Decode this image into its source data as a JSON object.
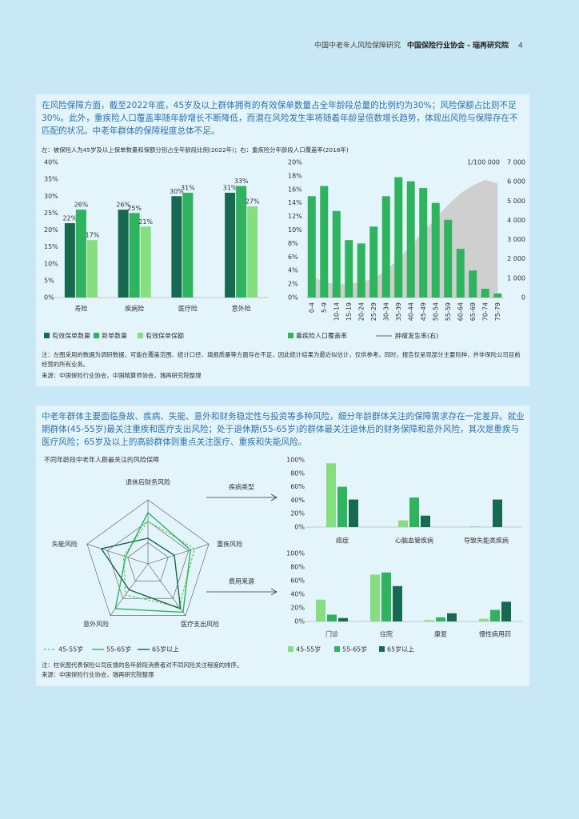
{
  "header": {
    "subtitle": "中国中老年人风险保障研究",
    "org": "中国保险行业协会 - 瑞再研究院",
    "page": "4"
  },
  "section1": {
    "text": "在风险保障方面，截至2022年底，45岁及以上群体拥有的有效保单数量占全年龄段总量的比例约为30%；风险保额占比则不足30%。此外，重疾险人口覆盖率随年龄增长不断降低，而潜在风险发生率将随着年龄呈倍数增长趋势，体现出风险与保障存在不匹配的状况。中老年群体的保障程度总体不足。",
    "caption": "左：被保险人为45岁及以上保单数量和保额分别占全年龄段比例(2022年)；右：重疾险分年龄段人口覆盖率(2018年)",
    "left_chart": {
      "type": "bar",
      "categories": [
        "寿险",
        "疾病险",
        "医疗险",
        "意外险"
      ],
      "series": [
        {
          "name": "有效保单数量",
          "color": "#17694f",
          "values": [
            22,
            26,
            30,
            31
          ],
          "value_labels": [
            "22%",
            "26%",
            "30%",
            "31%"
          ]
        },
        {
          "name": "新单数量",
          "color": "#2fb35f",
          "values": [
            26,
            25,
            31,
            33
          ],
          "value_labels": [
            "26%",
            "25%",
            "31%",
            "33%"
          ]
        },
        {
          "name": "有效保单保额",
          "color": "#86df7f",
          "values": [
            17,
            21,
            null,
            27
          ],
          "value_labels": [
            "17%",
            "21%",
            null,
            "27%"
          ]
        }
      ],
      "ylim": [
        0,
        40
      ],
      "yticks": [
        {
          "value": 0,
          "label": "0%"
        },
        {
          "value": 5,
          "label": "5%"
        },
        {
          "value": 10,
          "label": "10%"
        },
        {
          "value": 15,
          "label": "15%"
        },
        {
          "value": 20,
          "label": "20%"
        },
        {
          "value": 25,
          "label": "25%"
        },
        {
          "value": 30,
          "label": "30%"
        },
        {
          "value": 35,
          "label": "35%"
        },
        {
          "value": 40,
          "label": "40%"
        }
      ]
    },
    "right_chart": {
      "type": "bar",
      "categories": [
        "0-4",
        "5-9",
        "10-14",
        "15-19",
        "20-24",
        "25-29",
        "30-34",
        "35-39",
        "40-44",
        "45-49",
        "50-54",
        "55-59",
        "60-64",
        "65-69",
        "70-74",
        "75-79"
      ],
      "series": [
        {
          "name": "重疾险人口覆盖率",
          "color": "#2fb35f",
          "values": [
            15,
            16.5,
            12.8,
            8.5,
            8,
            10.5,
            15,
            17.8,
            17.2,
            16.2,
            14,
            11.5,
            7.2,
            4,
            1.3,
            0.6
          ]
        },
        {
          "name": "肿瘤发生率(右)",
          "type": "area",
          "axis": "y2",
          "color": "#cfcfcf",
          "values": [
            1100,
            800,
            700,
            700,
            800,
            1000,
            1400,
            2000,
            2700,
            3400,
            4100,
            4800,
            5400,
            5800,
            6100,
            5900
          ]
        }
      ],
      "ylim": [
        0,
        20
      ],
      "yticks": [
        {
          "value": 0,
          "label": "0%"
        },
        {
          "value": 2,
          "label": "2%"
        },
        {
          "value": 4,
          "label": "4%"
        },
        {
          "value": 6,
          "label": "6%"
        },
        {
          "value": 8,
          "label": "8%"
        },
        {
          "value": 10,
          "label": "10%"
        },
        {
          "value": 12,
          "label": "12%"
        },
        {
          "value": 14,
          "label": "14%"
        },
        {
          "value": 16,
          "label": "16%"
        },
        {
          "value": 18,
          "label": "18%"
        },
        {
          "value": 20,
          "label": "20%"
        }
      ],
      "y2lim": [
        0,
        7000
      ],
      "y2ticks": [
        0,
        {
          "value": 1000,
          "label": "1 000"
        },
        {
          "value": 2000,
          "label": "2 000"
        },
        {
          "value": 3000,
          "label": "3 000"
        },
        {
          "value": 4000,
          "label": "4 000"
        },
        {
          "value": 5000,
          "label": "5 000"
        },
        {
          "value": 6000,
          "label": "6 000"
        },
        {
          "value": 7000,
          "label": "7 000"
        }
      ],
      "y2_label": "1/100 000"
    },
    "note": "注：左图采用的数据为调研数据，可能在覆盖范围、统计口径、填报质量等方面存在不足，因此统计结果为最近似估计，仅供参考。同时，报告仅呈现部分主要险种，并非保险公司目前经营的所有业务。",
    "source": "来源：中国保险行业协会，中国精算师协会，瑞再研究院整理"
  },
  "section2": {
    "text": "中老年群体主要面临身故、疾病、失能、意外和财务稳定性与投资等多种风险，细分年龄群体关注的保障需求存在一定差异。就业期群体(45-55岁)最关注重疾和医疗支出风险；处于退休期(55-65岁)的群体最关注退休后的财务保障和意外风险，其次是重疾与医疗风险；65岁及以上的高龄群体则重点关注医疗、重疾和失能风险。",
    "radar": {
      "type": "radar",
      "title": "不同年龄段中老年人群最关注的风险保障",
      "axes": [
        "退休后财务风险",
        "重疾风险",
        "医疗支出风险",
        "意外风险",
        "失能风险"
      ],
      "rlim": [
        0,
        3
      ],
      "rticks": [
        1,
        2,
        3
      ],
      "series": [
        {
          "name": "45-55岁",
          "color": "#6fd36f",
          "dashed": true,
          "values": [
            2,
            2.3,
            2.5,
            1.8,
            1.2
          ]
        },
        {
          "name": "55-65岁",
          "color": "#2fb35f",
          "values": [
            2.4,
            2.1,
            2.8,
            2.6,
            1.1
          ]
        },
        {
          "name": "65岁以上",
          "color": "#17694f",
          "values": [
            1.2,
            1.3,
            2.6,
            1.5,
            2.3
          ]
        }
      ]
    },
    "bar_legend": [
      {
        "name": "45-55岁",
        "color": "#86df7f"
      },
      {
        "name": "55-65岁",
        "color": "#2fb35f"
      },
      {
        "name": "65岁以上",
        "color": "#17694f"
      }
    ],
    "disease_chart": {
      "type": "bar",
      "title": "疾病类型",
      "categories": [
        "癌症",
        "心脑血管疾病",
        "导致失能类疾病"
      ],
      "series": [
        {
          "values": [
            95,
            10,
            1
          ]
        },
        {
          "values": [
            60,
            44,
            0
          ]
        },
        {
          "values": [
            41,
            17,
            41
          ]
        }
      ],
      "ylim": [
        0,
        100
      ],
      "yticks": [
        {
          "value": 0,
          "label": "0%"
        },
        {
          "value": 20,
          "label": "20%"
        },
        {
          "value": 40,
          "label": "40%"
        },
        {
          "value": 60,
          "label": "60%"
        },
        {
          "value": 80,
          "label": "80%"
        },
        {
          "value": 100,
          "label": "100%"
        }
      ]
    },
    "cost_chart": {
      "type": "bar",
      "title": "费用来源",
      "categories": [
        "门诊",
        "住院",
        "康复",
        "慢性病用药"
      ],
      "series": [
        {
          "values": [
            32,
            69,
            2,
            4
          ]
        },
        {
          "values": [
            10,
            72,
            6,
            17
          ]
        },
        {
          "values": [
            5,
            52,
            12,
            29
          ]
        }
      ],
      "ylim": [
        0,
        100
      ],
      "yticks": [
        {
          "value": 0,
          "label": "0%"
        },
        {
          "value": 20,
          "label": "20%"
        },
        {
          "value": 40,
          "label": "40%"
        },
        {
          "value": 60,
          "label": "60%"
        },
        {
          "value": 80,
          "label": "80%"
        },
        {
          "value": 100,
          "label": "100%"
        }
      ]
    },
    "note": "注：柱状图代表保险公司反馈的各年龄段消费者对不同风险关注程度的排序。",
    "source": "来源：中国保险行业协会，瑞再研究院整理"
  }
}
